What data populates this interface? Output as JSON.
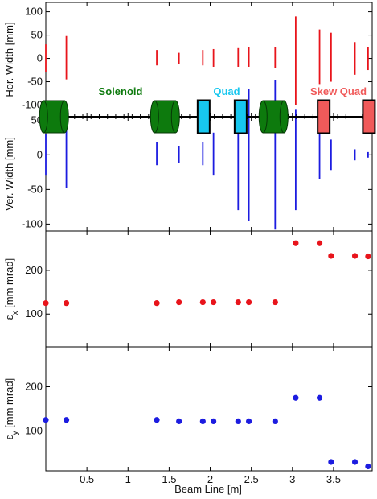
{
  "chart_data": [
    {
      "type": "line",
      "panel": "horizontal-width",
      "ylabel": "Hor. Width [mm]",
      "ylim": [
        -125,
        120
      ],
      "yticks": [
        100,
        50,
        0,
        -50,
        -100
      ],
      "color": "#e8141b",
      "series": [
        {
          "values": [
            [
              0.0,
              -30,
              30
            ],
            [
              0.25,
              -45,
              48
            ],
            [
              1.35,
              -15,
              18
            ],
            [
              1.62,
              -12,
              12
            ],
            [
              1.91,
              -15,
              18
            ],
            [
              2.04,
              -18,
              20
            ],
            [
              2.34,
              -18,
              22
            ],
            [
              2.47,
              -18,
              24
            ],
            [
              2.79,
              -20,
              25
            ],
            [
              3.04,
              -100,
              90
            ],
            [
              3.33,
              -55,
              62
            ],
            [
              3.47,
              -50,
              55
            ],
            [
              3.76,
              -35,
              35
            ],
            [
              3.92,
              -25,
              25
            ]
          ]
        }
      ]
    },
    {
      "type": "line",
      "panel": "vertical-width",
      "ylabel": "Ver. Width [mm]",
      "ylim": [
        -110,
        55
      ],
      "yticks": [
        100,
        50,
        0,
        -50,
        -100
      ],
      "color": "#1c1ce0",
      "series": [
        {
          "values": [
            [
              0.0,
              -30,
              30
            ],
            [
              0.25,
              -48,
              50
            ],
            [
              1.35,
              -15,
              18
            ],
            [
              1.62,
              -12,
              12
            ],
            [
              1.91,
              -15,
              18
            ],
            [
              2.04,
              -30,
              32
            ],
            [
              2.34,
              -80,
              80
            ],
            [
              2.47,
              -95,
              95
            ],
            [
              2.79,
              -108,
              108
            ],
            [
              3.04,
              -80,
              65
            ],
            [
              3.33,
              -35,
              30
            ],
            [
              3.47,
              -22,
              22
            ],
            [
              3.76,
              -8,
              8
            ],
            [
              3.92,
              -4,
              4
            ]
          ]
        }
      ]
    },
    {
      "type": "scatter",
      "panel": "emittance-x",
      "ylabel": "εx [mm mrad]",
      "ylim": [
        25,
        290
      ],
      "yticks": [
        200,
        100
      ],
      "color": "#e8141b",
      "x": [
        0.0,
        0.25,
        1.35,
        1.62,
        1.91,
        2.04,
        2.34,
        2.47,
        2.79,
        3.04,
        3.33,
        3.47,
        3.76,
        3.92
      ],
      "y": [
        125,
        125,
        125,
        127,
        127,
        127,
        127,
        127,
        127,
        262,
        262,
        233,
        233,
        232
      ]
    },
    {
      "type": "scatter",
      "panel": "emittance-y",
      "ylabel": "εy [mm mrad]",
      "ylim": [
        10,
        290
      ],
      "yticks": [
        200,
        100
      ],
      "color": "#1c1ce0",
      "x": [
        0.0,
        0.25,
        1.35,
        1.62,
        1.91,
        2.04,
        2.34,
        2.47,
        2.79,
        3.04,
        3.33,
        3.47,
        3.76,
        3.92
      ],
      "y": [
        125,
        125,
        125,
        122,
        122,
        122,
        122,
        122,
        122,
        175,
        175,
        30,
        30,
        20
      ]
    }
  ],
  "xaxis": {
    "label": "Beam Line [m]",
    "xlim": [
      0.0,
      3.97
    ],
    "ticks": [
      "0.5",
      "1",
      "1.5",
      "2",
      "2.5",
      "3",
      "3.5"
    ],
    "tick_values": [
      0.5,
      1.0,
      1.5,
      2.0,
      2.5,
      3.0,
      3.5
    ]
  },
  "elements": {
    "solenoid_label": "Solenoid",
    "quad_label": "Quad",
    "skew_quad_label": "Skew Quad",
    "solenoid_color": "#0d7a0d",
    "quad_color": "#17c7ef",
    "skew_quad_color": "#f05a5a",
    "solenoids": [
      0.1,
      1.45,
      2.77
    ],
    "quads": [
      1.92,
      2.37
    ],
    "skew_quads": [
      3.38,
      3.93
    ]
  }
}
